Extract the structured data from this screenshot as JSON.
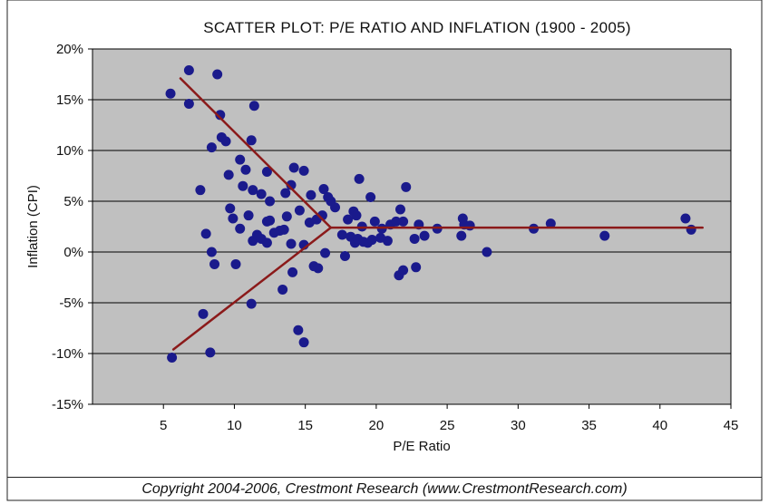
{
  "chart_data": {
    "type": "scatter",
    "title": "SCATTER PLOT: P/E RATIO AND INFLATION (1900 - 2005)",
    "xlabel": "P/E Ratio",
    "ylabel": "Inflation (CPI)",
    "xlim": [
      0,
      45
    ],
    "ylim": [
      -15,
      20
    ],
    "x_ticks": [
      5,
      10,
      15,
      20,
      25,
      30,
      35,
      40,
      45
    ],
    "x_tick_labels": [
      "5",
      "10",
      "15",
      "20",
      "25",
      "30",
      "35",
      "40",
      "45"
    ],
    "y_ticks": [
      20,
      15,
      10,
      5,
      0,
      -5,
      -10,
      -15
    ],
    "y_tick_labels": [
      "20%",
      "15%",
      "10%",
      "5%",
      "0%",
      "-5%",
      "-10%",
      "-15%"
    ],
    "grid": "horizontal",
    "colors": {
      "plot_bg": "#c0c0c0",
      "point": "#1a1a8c",
      "trend": "#8b1a1a",
      "gridline": "#000000"
    },
    "points": [
      [
        5.5,
        15.6
      ],
      [
        6.8,
        17.9
      ],
      [
        6.8,
        14.6
      ],
      [
        8.8,
        17.5
      ],
      [
        9.0,
        13.5
      ],
      [
        9.1,
        11.3
      ],
      [
        9.4,
        10.9
      ],
      [
        11.2,
        11.0
      ],
      [
        11.4,
        14.4
      ],
      [
        8.4,
        10.3
      ],
      [
        9.6,
        7.6
      ],
      [
        10.4,
        9.1
      ],
      [
        10.8,
        8.1
      ],
      [
        12.3,
        7.9
      ],
      [
        7.6,
        6.1
      ],
      [
        10.6,
        6.5
      ],
      [
        11.3,
        6.1
      ],
      [
        11.9,
        5.7
      ],
      [
        12.5,
        5.0
      ],
      [
        9.7,
        4.3
      ],
      [
        9.9,
        3.3
      ],
      [
        10.4,
        2.3
      ],
      [
        11.0,
        3.6
      ],
      [
        12.3,
        3.0
      ],
      [
        12.5,
        3.1
      ],
      [
        13.2,
        2.1
      ],
      [
        13.5,
        2.2
      ],
      [
        13.7,
        3.5
      ],
      [
        13.6,
        5.8
      ],
      [
        14.0,
        6.6
      ],
      [
        14.2,
        8.3
      ],
      [
        14.9,
        8.0
      ],
      [
        15.4,
        5.6
      ],
      [
        14.6,
        4.1
      ],
      [
        15.3,
        2.9
      ],
      [
        15.8,
        3.2
      ],
      [
        16.2,
        3.6
      ],
      [
        16.3,
        6.2
      ],
      [
        16.6,
        5.4
      ],
      [
        16.8,
        5.0
      ],
      [
        17.1,
        4.4
      ],
      [
        11.3,
        1.1
      ],
      [
        11.6,
        1.7
      ],
      [
        11.9,
        1.3
      ],
      [
        12.3,
        0.9
      ],
      [
        12.8,
        1.9
      ],
      [
        14.0,
        0.8
      ],
      [
        14.9,
        0.7
      ],
      [
        8.0,
        1.8
      ],
      [
        8.4,
        0.0
      ],
      [
        8.6,
        -1.2
      ],
      [
        10.1,
        -1.2
      ],
      [
        11.2,
        -5.1
      ],
      [
        13.4,
        -3.7
      ],
      [
        14.1,
        -2.0
      ],
      [
        14.5,
        -7.7
      ],
      [
        14.9,
        -8.9
      ],
      [
        15.6,
        -1.4
      ],
      [
        15.9,
        -1.6
      ],
      [
        16.4,
        -0.1
      ],
      [
        7.8,
        -6.1
      ],
      [
        8.3,
        -9.9
      ],
      [
        5.6,
        -10.4
      ],
      [
        17.6,
        1.7
      ],
      [
        17.8,
        -0.4
      ],
      [
        18.2,
        1.5
      ],
      [
        18.5,
        0.9
      ],
      [
        18.7,
        1.3
      ],
      [
        19.1,
        1.0
      ],
      [
        19.4,
        0.9
      ],
      [
        19.7,
        1.2
      ],
      [
        20.3,
        1.4
      ],
      [
        18.0,
        3.2
      ],
      [
        18.4,
        4.0
      ],
      [
        18.6,
        3.6
      ],
      [
        19.0,
        2.5
      ],
      [
        19.9,
        3.0
      ],
      [
        20.4,
        2.3
      ],
      [
        20.8,
        1.1
      ],
      [
        21.0,
        2.7
      ],
      [
        21.4,
        3.0
      ],
      [
        21.7,
        4.2
      ],
      [
        21.9,
        3.0
      ],
      [
        18.8,
        7.2
      ],
      [
        19.6,
        5.4
      ],
      [
        22.1,
        6.4
      ],
      [
        21.6,
        -2.3
      ],
      [
        21.9,
        -1.8
      ],
      [
        22.8,
        -1.5
      ],
      [
        22.7,
        1.3
      ],
      [
        23.0,
        2.7
      ],
      [
        23.4,
        1.6
      ],
      [
        24.3,
        2.3
      ],
      [
        26.0,
        1.6
      ],
      [
        26.1,
        3.3
      ],
      [
        26.2,
        2.7
      ],
      [
        26.6,
        2.6
      ],
      [
        27.8,
        0.0
      ],
      [
        31.1,
        2.3
      ],
      [
        32.3,
        2.8
      ],
      [
        36.1,
        1.6
      ],
      [
        41.8,
        3.3
      ],
      [
        42.2,
        2.2
      ]
    ],
    "trend_lines": [
      [
        [
          6.2,
          17.1
        ],
        [
          16.8,
          2.4
        ]
      ],
      [
        [
          5.7,
          -9.6
        ],
        [
          16.8,
          2.4
        ]
      ],
      [
        [
          16.8,
          2.4
        ],
        [
          43.0,
          2.4
        ]
      ]
    ]
  },
  "footer": {
    "copyright": "Copyright 2004-2006, Crestmont Research (www.CrestmontResearch.com)"
  }
}
